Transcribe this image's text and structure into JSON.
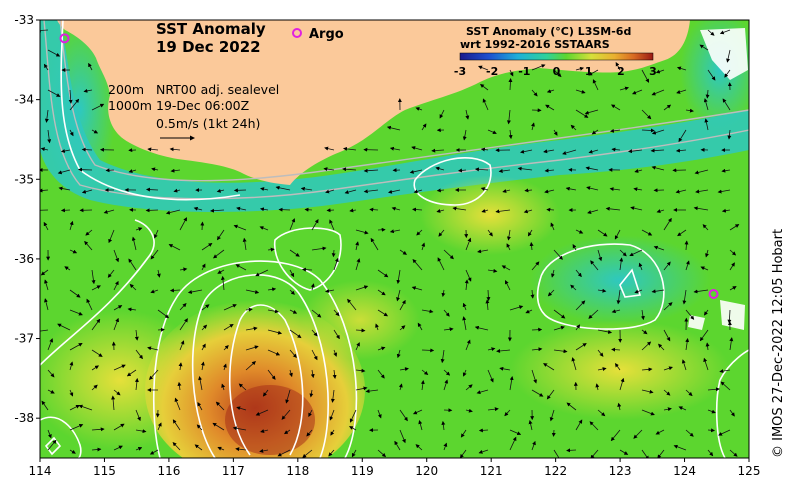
{
  "map": {
    "title_line1": "SST Anomaly",
    "title_line2": "19 Dec 2022",
    "argo_label": "Argo",
    "depth_200": "200m",
    "depth_1000": "1000m",
    "sealevel_label": "NRT00 adj. sealevel",
    "sealevel_time": "19-Dec 06:00Z",
    "current_scale": "0.5m/s (1kt 24h)",
    "credit": "© IMOS 27-Dec-2022 12:05 Hobart",
    "colors": {
      "land": "#fbc99a",
      "water_green": "#5cd62f",
      "cyan": "#25c2c6",
      "yellow": "#e6e03a",
      "orange": "#e8a02a",
      "red": "#c8501e",
      "argo": "#e020e0",
      "contour": "#ffffff"
    }
  },
  "legend": {
    "title_line1": "SST Anomaly (°C) L3SM-6d",
    "title_line2": "wrt 1992-2016 SSTAARS",
    "ticks": [
      "-3",
      "-2",
      "-1",
      "0",
      "1",
      "2",
      "3"
    ]
  },
  "axes": {
    "x_ticks": [
      "114",
      "115",
      "116",
      "117",
      "118",
      "119",
      "120",
      "121",
      "122",
      "123",
      "124",
      "125"
    ],
    "y_ticks": [
      "-33",
      "-34",
      "-35",
      "-36",
      "-37",
      "-38"
    ],
    "lon_range": [
      114,
      125
    ],
    "lat_range": [
      -38.5,
      -33
    ]
  },
  "argo_floats": [
    {
      "lon": 114.38,
      "lat": -33.23
    },
    {
      "lon": 124.45,
      "lat": -36.44
    }
  ]
}
